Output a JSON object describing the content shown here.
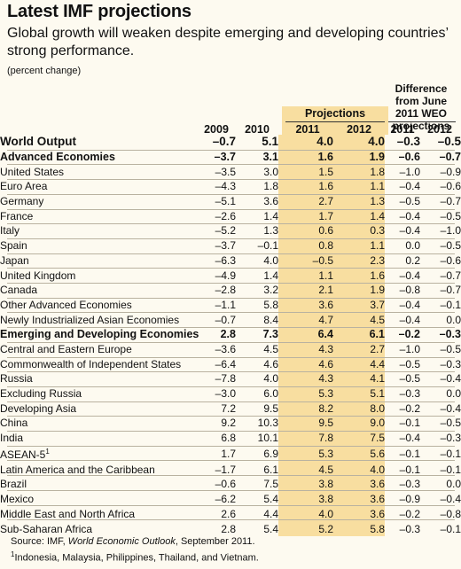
{
  "title": "Latest IMF projections",
  "subtitle": "Global growth will weaken despite emerging and developing countries’ strong performance.",
  "unit": "(percent change)",
  "header": {
    "projections": "Projections",
    "difference": "Difference from June 2011 WEO projections",
    "col_2009": "2009",
    "col_2010": "2010",
    "col_2011p": "2011",
    "col_2012p": "2012",
    "col_2011d": "2011",
    "col_2012d": "2012"
  },
  "rows": [
    {
      "label": "World Output",
      "indent": 0,
      "style": "major",
      "v": [
        "–0.7",
        "5.1",
        "4.0",
        "4.0",
        "–0.3",
        "–0.5"
      ]
    },
    {
      "label": "Advanced Economies",
      "indent": 1,
      "style": "bold",
      "v": [
        "–3.7",
        "3.1",
        "1.6",
        "1.9",
        "–0.6",
        "–0.7"
      ]
    },
    {
      "label": "United States",
      "indent": 1,
      "style": "",
      "v": [
        "–3.5",
        "3.0",
        "1.5",
        "1.8",
        "–1.0",
        "–0.9"
      ]
    },
    {
      "label": "Euro Area",
      "indent": 1,
      "style": "",
      "v": [
        "–4.3",
        "1.8",
        "1.6",
        "1.1",
        "–0.4",
        "–0.6"
      ]
    },
    {
      "label": "Germany",
      "indent": 2,
      "style": "",
      "v": [
        "–5.1",
        "3.6",
        "2.7",
        "1.3",
        "–0.5",
        "–0.7"
      ]
    },
    {
      "label": "France",
      "indent": 2,
      "style": "",
      "v": [
        "–2.6",
        "1.4",
        "1.7",
        "1.4",
        "–0.4",
        "–0.5"
      ]
    },
    {
      "label": "Italy",
      "indent": 2,
      "style": "",
      "v": [
        "–5.2",
        "1.3",
        "0.6",
        "0.3",
        "–0.4",
        "–1.0"
      ]
    },
    {
      "label": "Spain",
      "indent": 2,
      "style": "",
      "v": [
        "–3.7",
        "–0.1",
        "0.8",
        "1.1",
        "0.0",
        "–0.5"
      ]
    },
    {
      "label": "Japan",
      "indent": 1,
      "style": "",
      "v": [
        "–6.3",
        "4.0",
        "–0.5",
        "2.3",
        "0.2",
        "–0.6"
      ]
    },
    {
      "label": "United Kingdom",
      "indent": 1,
      "style": "",
      "v": [
        "–4.9",
        "1.4",
        "1.1",
        "1.6",
        "–0.4",
        "–0.7"
      ]
    },
    {
      "label": "Canada",
      "indent": 1,
      "style": "",
      "v": [
        "–2.8",
        "3.2",
        "2.1",
        "1.9",
        "–0.8",
        "–0.7"
      ]
    },
    {
      "label": "Other Advanced Economies",
      "indent": 1,
      "style": "",
      "v": [
        "–1.1",
        "5.8",
        "3.6",
        "3.7",
        "–0.4",
        "–0.1"
      ]
    },
    {
      "label": "Newly Industrialized Asian Economies",
      "indent": 2,
      "style": "",
      "v": [
        "–0.7",
        "8.4",
        "4.7",
        "4.5",
        "–0.4",
        "0.0"
      ]
    },
    {
      "label": "Emerging and Developing Economies",
      "indent": 1,
      "style": "bold",
      "v": [
        "2.8",
        "7.3",
        "6.4",
        "6.1",
        "–0.2",
        "–0.3"
      ]
    },
    {
      "label": "Central and Eastern Europe",
      "indent": 1,
      "style": "",
      "v": [
        "–3.6",
        "4.5",
        "4.3",
        "2.7",
        "–1.0",
        "–0.5"
      ]
    },
    {
      "label": "Commonwealth of Independent States",
      "indent": 1,
      "style": "",
      "v": [
        "–6.4",
        "4.6",
        "4.6",
        "4.4",
        "–0.5",
        "–0.3"
      ]
    },
    {
      "label": "Russia",
      "indent": 2,
      "style": "",
      "v": [
        "–7.8",
        "4.0",
        "4.3",
        "4.1",
        "–0.5",
        "–0.4"
      ]
    },
    {
      "label": "Excluding Russia",
      "indent": 2,
      "style": "",
      "v": [
        "–3.0",
        "6.0",
        "5.3",
        "5.1",
        "–0.3",
        "0.0"
      ]
    },
    {
      "label": "Developing Asia",
      "indent": 1,
      "style": "",
      "v": [
        "7.2",
        "9.5",
        "8.2",
        "8.0",
        "–0.2",
        "–0.4"
      ]
    },
    {
      "label": "China",
      "indent": 2,
      "style": "",
      "v": [
        "9.2",
        "10.3",
        "9.5",
        "9.0",
        "–0.1",
        "–0.5"
      ]
    },
    {
      "label": "India",
      "indent": 2,
      "style": "",
      "v": [
        "6.8",
        "10.1",
        "7.8",
        "7.5",
        "–0.4",
        "–0.3"
      ]
    },
    {
      "label": "ASEAN-5",
      "sup": "1",
      "indent": 2,
      "style": "",
      "v": [
        "1.7",
        "6.9",
        "5.3",
        "5.6",
        "–0.1",
        "–0.1"
      ]
    },
    {
      "label": "Latin America and the Caribbean",
      "indent": 1,
      "style": "",
      "v": [
        "–1.7",
        "6.1",
        "4.5",
        "4.0",
        "–0.1",
        "–0.1"
      ]
    },
    {
      "label": "Brazil",
      "indent": 2,
      "style": "",
      "v": [
        "–0.6",
        "7.5",
        "3.8",
        "3.6",
        "–0.3",
        "0.0"
      ]
    },
    {
      "label": "Mexico",
      "indent": 2,
      "style": "",
      "v": [
        "–6.2",
        "5.4",
        "3.8",
        "3.6",
        "–0.9",
        "–0.4"
      ]
    },
    {
      "label": "Middle East and North Africa",
      "indent": 1,
      "style": "",
      "v": [
        "2.6",
        "4.4",
        "4.0",
        "3.6",
        "–0.2",
        "–0.8"
      ]
    },
    {
      "label": "Sub-Saharan Africa",
      "indent": 1,
      "style": "",
      "v": [
        "2.8",
        "5.4",
        "5.2",
        "5.8",
        "–0.3",
        "–0.1"
      ]
    }
  ],
  "footer": {
    "source_prefix": "Source: IMF, ",
    "source_title": "World Economic Outlook",
    "source_suffix": ", September 2011.",
    "note_mark": "1",
    "note": "Indonesia, Malaysia, Philippines, Thailand, and Vietnam."
  },
  "colors": {
    "projection_band": "#f8dea0",
    "background": "#fdfaf0"
  }
}
